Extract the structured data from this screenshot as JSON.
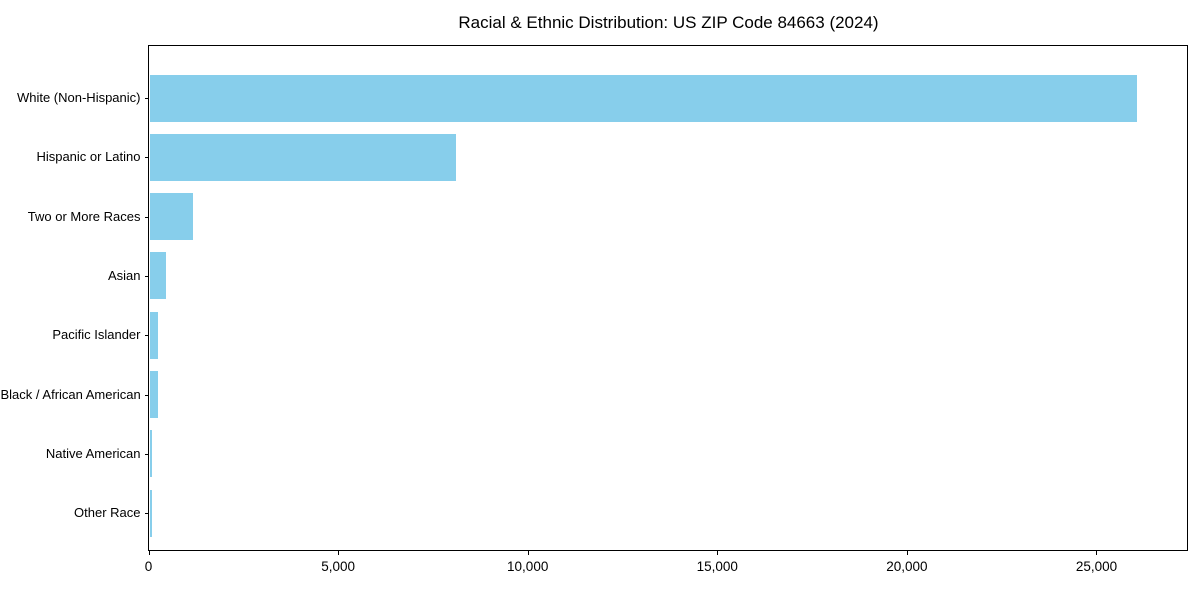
{
  "chart_data": {
    "type": "bar",
    "orientation": "horizontal",
    "title": "Racial & Ethnic Distribution: US ZIP Code 84663 (2024)",
    "categories": [
      "White (Non-Hispanic)",
      "Hispanic or Latino",
      "Two or More Races",
      "Asian",
      "Pacific Islander",
      "Black / African American",
      "Native American",
      "Other Race"
    ],
    "values": [
      26040,
      8095,
      1160,
      440,
      237,
      211,
      55,
      70
    ],
    "xlabel": "",
    "ylabel": "",
    "xlim": [
      0,
      27400
    ],
    "xticks": [
      0,
      5000,
      10000,
      15000,
      20000,
      25000
    ],
    "xtick_labels": [
      "0",
      "5,000",
      "10,000",
      "15,000",
      "20,000",
      "25,000"
    ],
    "bar_color": "#87CEEB",
    "text_color": "#000000",
    "grid": false,
    "legend": null,
    "background": "#ffffff"
  }
}
